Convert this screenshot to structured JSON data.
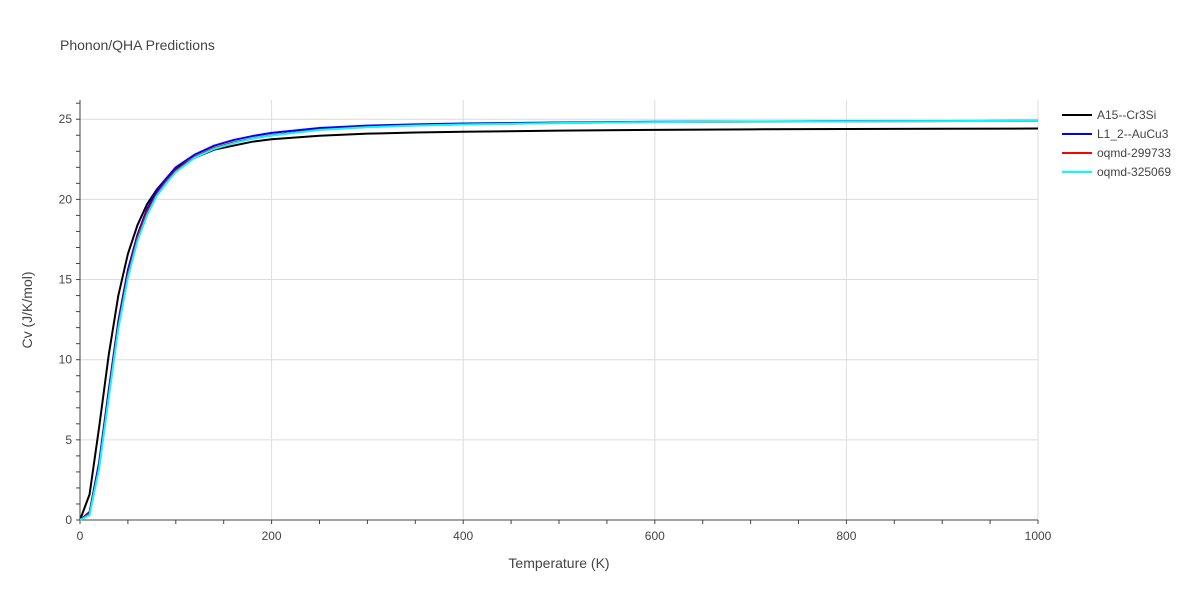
{
  "chart_data": {
    "type": "line",
    "title": "Phonon/QHA Predictions",
    "xlabel": "Temperature (K)",
    "ylabel": "Cv (J/K/mol)",
    "xlim": [
      0,
      1000
    ],
    "ylim": [
      0,
      26.2
    ],
    "xticks": [
      0,
      200,
      400,
      600,
      800,
      1000
    ],
    "yticks": [
      0,
      5,
      10,
      15,
      20,
      25
    ],
    "xtick_labels": [
      "0",
      "200",
      "400",
      "600",
      "800",
      "1000"
    ],
    "ytick_labels": [
      "0",
      "5",
      "10",
      "15",
      "20",
      "25"
    ],
    "grid": true,
    "legend_position": "top-right",
    "series": [
      {
        "name": "A15--Cr3Si",
        "color": "#000000",
        "x": [
          0,
          10,
          20,
          30,
          40,
          50,
          60,
          70,
          80,
          90,
          100,
          120,
          140,
          160,
          180,
          200,
          250,
          300,
          350,
          400,
          500,
          600,
          700,
          800,
          900,
          1000
        ],
        "y": [
          0,
          1.6,
          5.8,
          10.3,
          14.0,
          16.6,
          18.4,
          19.7,
          20.6,
          21.3,
          21.9,
          22.6,
          23.1,
          23.35,
          23.6,
          23.75,
          23.97,
          24.1,
          24.17,
          24.22,
          24.29,
          24.34,
          24.37,
          24.39,
          24.41,
          24.42
        ]
      },
      {
        "name": "L1_2--AuCu3",
        "color": "#0000ff",
        "x": [
          0,
          10,
          20,
          30,
          40,
          50,
          60,
          70,
          80,
          90,
          100,
          120,
          140,
          160,
          180,
          200,
          250,
          300,
          350,
          400,
          500,
          600,
          700,
          800,
          900,
          1000
        ],
        "y": [
          0,
          0.5,
          3.6,
          8.1,
          12.4,
          15.6,
          17.8,
          19.4,
          20.5,
          21.3,
          22.0,
          22.8,
          23.35,
          23.7,
          23.95,
          24.15,
          24.45,
          24.6,
          24.68,
          24.73,
          24.8,
          24.84,
          24.86,
          24.88,
          24.89,
          24.9
        ]
      },
      {
        "name": "oqmd-299733",
        "color": "#ff0000",
        "x": [
          0,
          10,
          20,
          30,
          40,
          50,
          60,
          70,
          80,
          90,
          100,
          120,
          140,
          160,
          180,
          200,
          250,
          300,
          350,
          400,
          500,
          600,
          700,
          800,
          900,
          1000
        ],
        "y": [
          0,
          0.4,
          3.3,
          7.8,
          12.1,
          15.3,
          17.6,
          19.2,
          20.3,
          21.1,
          21.8,
          22.65,
          23.2,
          23.55,
          23.8,
          24.0,
          24.35,
          24.52,
          24.62,
          24.68,
          24.77,
          24.82,
          24.85,
          24.87,
          24.88,
          24.9
        ]
      },
      {
        "name": "oqmd-325069",
        "color": "#00ffff",
        "x": [
          0,
          10,
          20,
          30,
          40,
          50,
          60,
          70,
          80,
          90,
          100,
          120,
          140,
          160,
          180,
          200,
          250,
          300,
          350,
          400,
          500,
          600,
          700,
          800,
          900,
          1000
        ],
        "y": [
          0,
          0.3,
          3.2,
          7.6,
          11.9,
          15.1,
          17.4,
          19.0,
          20.2,
          21.0,
          21.7,
          22.6,
          23.15,
          23.5,
          23.78,
          23.98,
          24.33,
          24.5,
          24.6,
          24.67,
          24.76,
          24.82,
          24.85,
          24.87,
          24.88,
          24.9
        ]
      }
    ]
  }
}
